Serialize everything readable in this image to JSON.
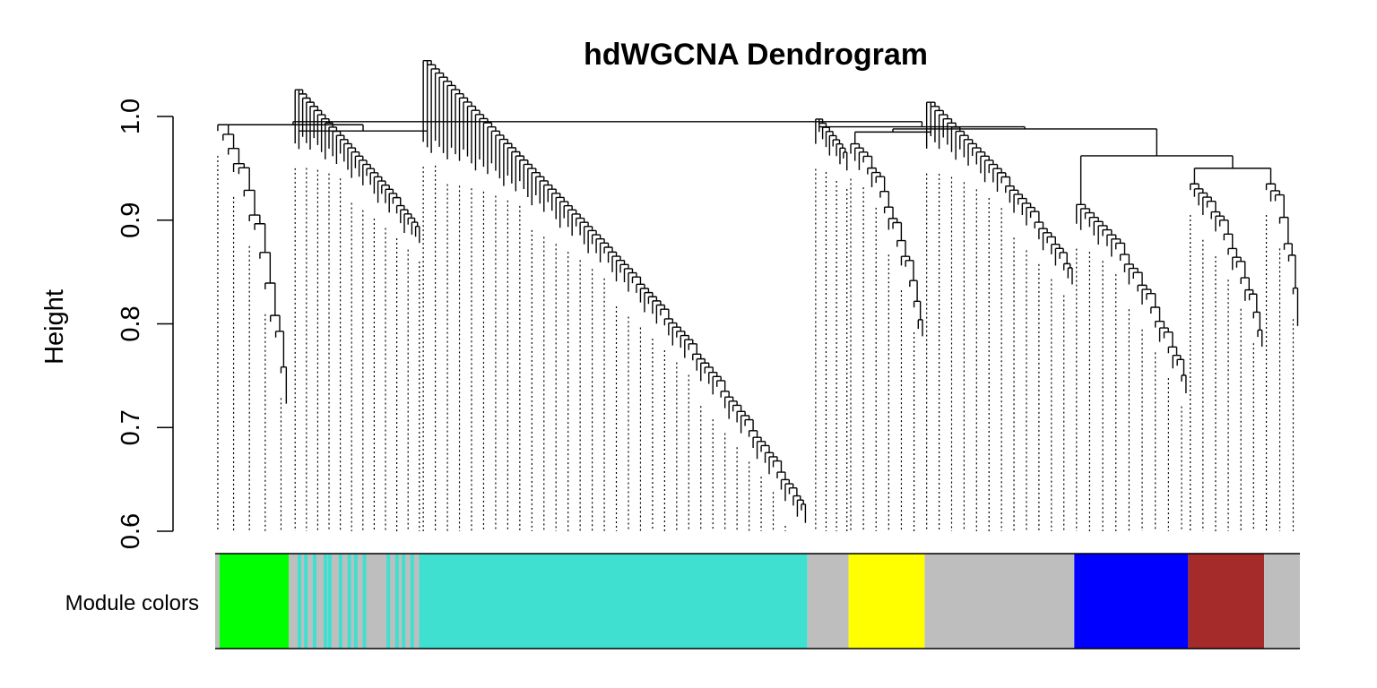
{
  "chart_data": {
    "type": "dendrogram",
    "title": "hdWGCNA Dendrogram",
    "ylabel": "Height",
    "ylim": [
      0.6,
      1.0
    ],
    "yticks": [
      "0.6",
      "0.7",
      "0.8",
      "0.9",
      "1.0"
    ],
    "color_bar_label": "Module colors",
    "modules": [
      {
        "color": "#bebebe",
        "start": 0.0,
        "end": 0.004
      },
      {
        "color": "#00ff00",
        "start": 0.004,
        "end": 0.068
      },
      {
        "color": "#bebebe",
        "start": 0.068,
        "end": 0.188
      },
      {
        "color": "#40e0d0",
        "start": 0.188,
        "end": 0.546
      },
      {
        "color": "#bebebe",
        "start": 0.546,
        "end": 0.584
      },
      {
        "color": "#ffff00",
        "start": 0.584,
        "end": 0.654
      },
      {
        "color": "#bebebe",
        "start": 0.654,
        "end": 0.792
      },
      {
        "color": "#0000ff",
        "start": 0.792,
        "end": 0.897
      },
      {
        "color": "#a52a2a",
        "start": 0.897,
        "end": 0.967
      },
      {
        "color": "#bebebe",
        "start": 0.967,
        "end": 1.0
      }
    ],
    "turquoise_stripes": [
      0.076,
      0.082,
      0.09,
      0.1,
      0.104,
      0.114,
      0.122,
      0.128,
      0.136,
      0.158,
      0.166,
      0.172,
      0.18
    ],
    "dendrogram": {
      "root_height": 0.995,
      "top_split": 0.552,
      "left_merge": 0.992,
      "right_merge": 0.99,
      "segments": [
        {
          "x0": 0.0,
          "x1": 0.068,
          "top": 0.992,
          "bottom": 0.735,
          "leaves": 14
        },
        {
          "x0": 0.072,
          "x1": 0.19,
          "top": 0.99,
          "bottom": 0.89,
          "leaves": 34
        },
        {
          "x0": 0.19,
          "x1": 0.546,
          "top": 0.984,
          "bottom": 0.62,
          "leaves": 96
        },
        {
          "x0": 0.552,
          "x1": 0.584,
          "top": 0.992,
          "bottom": 0.96,
          "leaves": 10
        },
        {
          "x0": 0.584,
          "x1": 0.654,
          "top": 0.975,
          "bottom": 0.8,
          "leaves": 18
        },
        {
          "x0": 0.654,
          "x1": 0.792,
          "top": 0.99,
          "bottom": 0.85,
          "leaves": 36
        },
        {
          "x0": 0.792,
          "x1": 0.897,
          "top": 0.91,
          "bottom": 0.745,
          "leaves": 26
        },
        {
          "x0": 0.897,
          "x1": 0.967,
          "top": 0.935,
          "bottom": 0.79,
          "leaves": 18
        },
        {
          "x0": 0.967,
          "x1": 1.0,
          "top": 0.945,
          "bottom": 0.81,
          "leaves": 8
        }
      ]
    }
  }
}
